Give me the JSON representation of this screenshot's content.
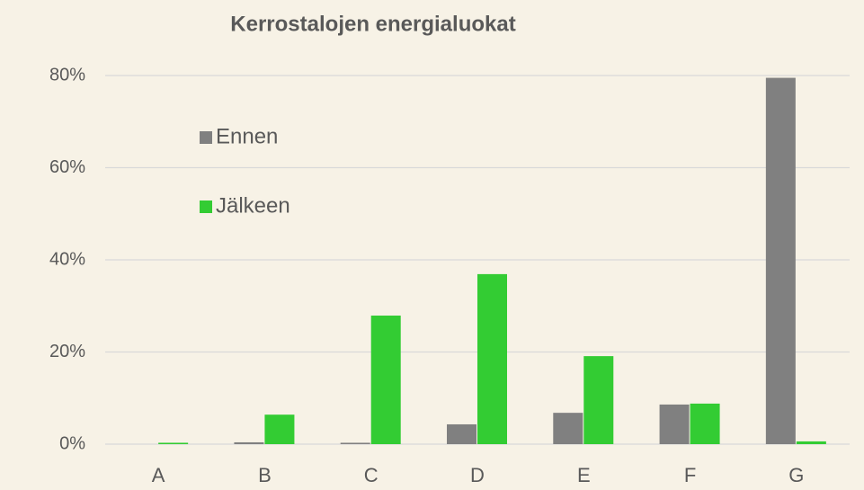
{
  "chart_data": {
    "type": "bar",
    "title": "Kerrostalojen energialuokat",
    "categories": [
      "A",
      "B",
      "C",
      "D",
      "E",
      "F",
      "G"
    ],
    "series": [
      {
        "name": "Ennen",
        "color": "#808080",
        "values": [
          0,
          0.4,
          0.3,
          4.3,
          6.8,
          8.6,
          79.5
        ]
      },
      {
        "name": "Jälkeen",
        "color": "#33cc33",
        "values": [
          0.3,
          6.4,
          27.9,
          36.9,
          19.1,
          8.8,
          0.6
        ]
      }
    ],
    "ylim": [
      0,
      80
    ],
    "yticks": [
      {
        "value": 0,
        "label": "0%"
      },
      {
        "value": 20,
        "label": "20%"
      },
      {
        "value": 40,
        "label": "40%"
      },
      {
        "value": 60,
        "label": "60%"
      },
      {
        "value": 80,
        "label": "80%"
      }
    ],
    "grid": true,
    "legend": "upper left"
  }
}
